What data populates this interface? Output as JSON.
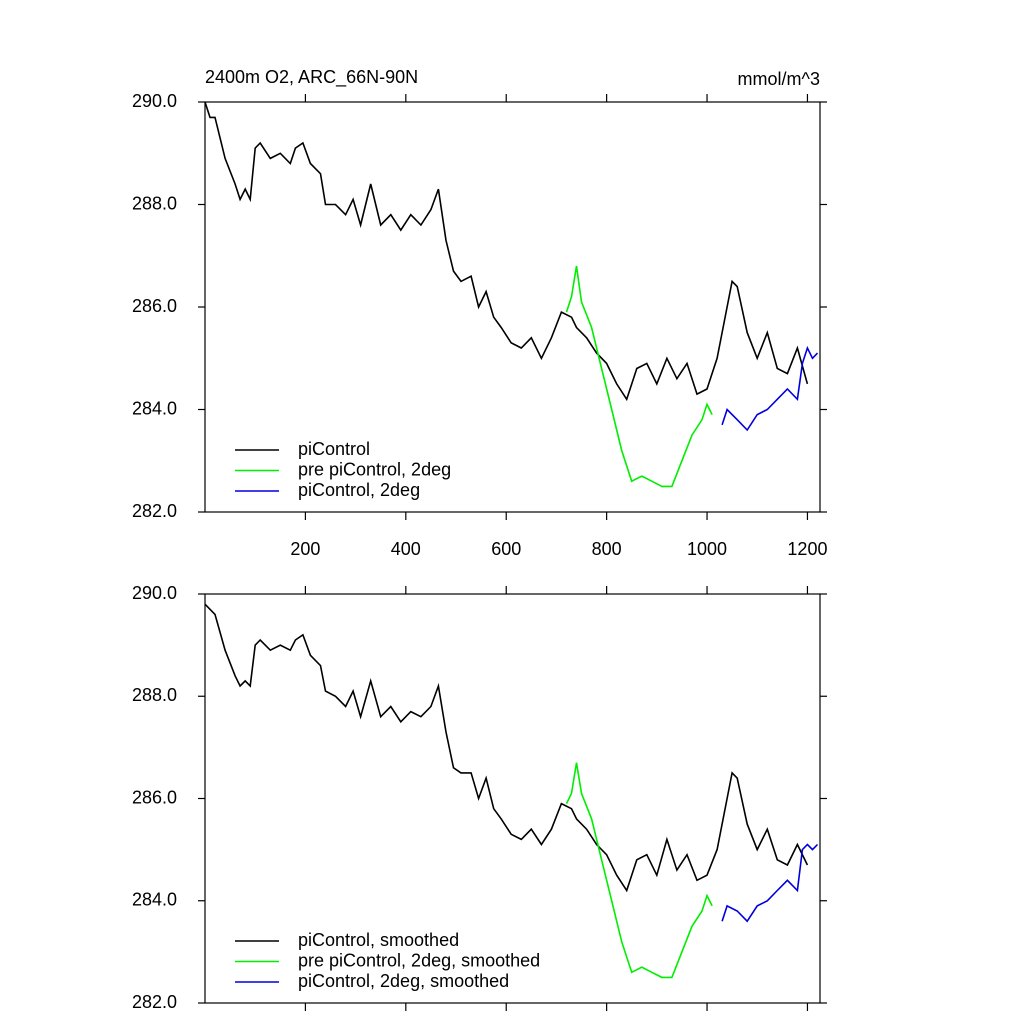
{
  "chart_data": [
    {
      "type": "line",
      "title": "2400m O2, ARC_66N-90N",
      "units": "mmol/m^3",
      "xlim": [
        0,
        1225
      ],
      "xticks": [
        200,
        400,
        600,
        800,
        1000,
        1200
      ],
      "ylim": [
        282,
        290
      ],
      "yticks": [
        {
          "value": 282,
          "label": "282.0"
        },
        {
          "value": 284,
          "label": "284.0"
        },
        {
          "value": 286,
          "label": "286.0"
        },
        {
          "value": 288,
          "label": "288.0"
        },
        {
          "value": 290,
          "label": "290.0"
        }
      ],
      "legend": "lower left",
      "series": [
        {
          "name": "piControl",
          "color": "#000000",
          "x": [
            0,
            10,
            20,
            40,
            60,
            70,
            80,
            90,
            100,
            110,
            130,
            150,
            170,
            180,
            195,
            210,
            230,
            240,
            260,
            280,
            295,
            310,
            330,
            350,
            370,
            390,
            410,
            430,
            450,
            465,
            480,
            495,
            510,
            530,
            545,
            560,
            575,
            590,
            610,
            630,
            650,
            670,
            690,
            710,
            730,
            740,
            760,
            780,
            800,
            820,
            840,
            860,
            880,
            900,
            920,
            940,
            960,
            980,
            1000,
            1020,
            1040,
            1050,
            1060,
            1080,
            1100,
            1120,
            1140,
            1160,
            1180,
            1200
          ],
          "values": [
            290.0,
            289.7,
            289.7,
            288.9,
            288.4,
            288.1,
            288.3,
            288.1,
            289.1,
            289.2,
            288.9,
            289.0,
            288.8,
            289.1,
            289.2,
            288.8,
            288.6,
            288.0,
            288.0,
            287.8,
            288.1,
            287.6,
            288.4,
            287.6,
            287.8,
            287.5,
            287.8,
            287.6,
            287.9,
            288.3,
            287.3,
            286.7,
            286.5,
            286.6,
            286.0,
            286.3,
            285.8,
            285.6,
            285.3,
            285.2,
            285.4,
            285.0,
            285.4,
            285.9,
            285.8,
            285.6,
            285.4,
            285.1,
            284.9,
            284.5,
            284.2,
            284.8,
            284.9,
            284.5,
            285.0,
            284.6,
            284.9,
            284.3,
            284.4,
            285.0,
            286.0,
            286.5,
            286.4,
            285.5,
            285.0,
            285.5,
            284.8,
            284.7,
            285.2,
            284.5
          ]
        },
        {
          "name": "pre piControl, 2deg",
          "color": "#00ee00",
          "x": [
            720,
            730,
            740,
            750,
            770,
            790,
            810,
            830,
            850,
            870,
            890,
            910,
            930,
            950,
            970,
            990,
            1000,
            1010
          ],
          "values": [
            285.9,
            286.2,
            286.8,
            286.1,
            285.6,
            284.8,
            284.0,
            283.2,
            282.6,
            282.7,
            282.6,
            282.5,
            282.5,
            283.0,
            283.5,
            283.8,
            284.1,
            283.9
          ]
        },
        {
          "name": "piControl, 2deg",
          "color": "#0000dd",
          "x": [
            1030,
            1040,
            1060,
            1080,
            1100,
            1120,
            1140,
            1160,
            1180,
            1190,
            1200,
            1210,
            1220
          ],
          "values": [
            283.7,
            284.0,
            283.8,
            283.6,
            283.9,
            284.0,
            284.2,
            284.4,
            284.2,
            284.9,
            285.2,
            285.0,
            285.1
          ]
        }
      ]
    },
    {
      "type": "line",
      "xlim": [
        0,
        1225
      ],
      "xticks": [
        200,
        400,
        600,
        800,
        1000,
        1200
      ],
      "ylim": [
        282,
        290
      ],
      "yticks": [
        {
          "value": 282,
          "label": "282.0"
        },
        {
          "value": 284,
          "label": "284.0"
        },
        {
          "value": 286,
          "label": "286.0"
        },
        {
          "value": 288,
          "label": "288.0"
        },
        {
          "value": 290,
          "label": "290.0"
        }
      ],
      "legend": "lower left",
      "series": [
        {
          "name": "piControl, smoothed",
          "color": "#000000",
          "x": [
            0,
            10,
            20,
            40,
            60,
            70,
            80,
            90,
            100,
            110,
            130,
            150,
            170,
            180,
            195,
            210,
            230,
            240,
            260,
            280,
            295,
            310,
            330,
            350,
            370,
            390,
            410,
            430,
            450,
            465,
            480,
            495,
            510,
            530,
            545,
            560,
            575,
            590,
            610,
            630,
            650,
            670,
            690,
            710,
            730,
            740,
            760,
            780,
            800,
            820,
            840,
            860,
            880,
            900,
            920,
            940,
            960,
            980,
            1000,
            1020,
            1040,
            1050,
            1060,
            1080,
            1100,
            1120,
            1140,
            1160,
            1180,
            1200
          ],
          "values": [
            289.8,
            289.7,
            289.6,
            288.9,
            288.4,
            288.2,
            288.3,
            288.2,
            289.0,
            289.1,
            288.9,
            289.0,
            288.9,
            289.1,
            289.2,
            288.8,
            288.6,
            288.1,
            288.0,
            287.8,
            288.1,
            287.6,
            288.3,
            287.6,
            287.8,
            287.5,
            287.7,
            287.6,
            287.8,
            288.2,
            287.3,
            286.6,
            286.5,
            286.5,
            286.0,
            286.4,
            285.8,
            285.6,
            285.3,
            285.2,
            285.4,
            285.1,
            285.4,
            285.9,
            285.8,
            285.6,
            285.4,
            285.1,
            284.9,
            284.5,
            284.2,
            284.8,
            284.9,
            284.5,
            285.2,
            284.6,
            284.9,
            284.4,
            284.5,
            285.0,
            286.0,
            286.5,
            286.4,
            285.5,
            285.0,
            285.4,
            284.8,
            284.7,
            285.1,
            284.7
          ]
        },
        {
          "name": "pre piControl, 2deg, smoothed",
          "color": "#00ee00",
          "x": [
            720,
            730,
            740,
            750,
            770,
            790,
            810,
            830,
            850,
            870,
            890,
            910,
            930,
            950,
            970,
            990,
            1000,
            1010
          ],
          "values": [
            285.9,
            286.1,
            286.7,
            286.1,
            285.6,
            284.8,
            284.0,
            283.2,
            282.6,
            282.7,
            282.6,
            282.5,
            282.5,
            283.0,
            283.5,
            283.8,
            284.1,
            283.9
          ]
        },
        {
          "name": "piControl, 2deg, smoothed",
          "color": "#0000dd",
          "x": [
            1030,
            1040,
            1060,
            1080,
            1100,
            1120,
            1140,
            1160,
            1180,
            1190,
            1200,
            1210,
            1220
          ],
          "values": [
            283.6,
            283.9,
            283.8,
            283.6,
            283.9,
            284.0,
            284.2,
            284.4,
            284.2,
            285.0,
            285.1,
            285.0,
            285.1
          ]
        }
      ]
    }
  ]
}
